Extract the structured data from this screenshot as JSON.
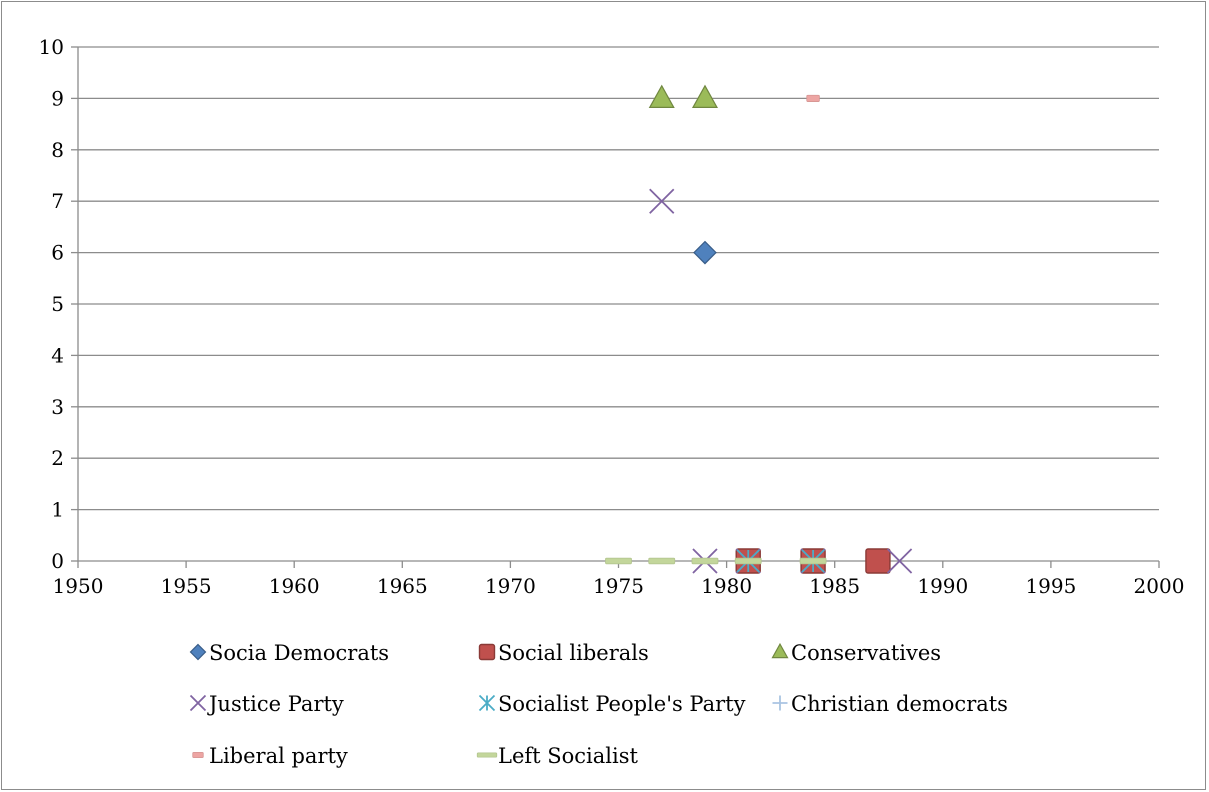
{
  "chart_data": {
    "type": "scatter",
    "title": "",
    "xlabel": "",
    "ylabel": "",
    "xlim": [
      1950,
      2000
    ],
    "ylim": [
      0,
      10
    ],
    "x_ticks": [
      "1950",
      "1955",
      "1960",
      "1965",
      "1970",
      "1975",
      "1980",
      "1985",
      "1990",
      "1995",
      "2000"
    ],
    "y_ticks": [
      "0",
      "1",
      "2",
      "3",
      "4",
      "5",
      "6",
      "7",
      "8",
      "9",
      "10"
    ],
    "grid": "horizontal",
    "legend_position": "bottom",
    "series": [
      {
        "name": "Socia Democrats",
        "marker": "diamond",
        "color": "#4f81bd",
        "points": [
          {
            "x": 1979,
            "y": 6
          }
        ]
      },
      {
        "name": "Social liberals",
        "marker": "square",
        "color": "#c0504d",
        "points": [
          {
            "x": 1981,
            "y": 0
          },
          {
            "x": 1984,
            "y": 0
          },
          {
            "x": 1987,
            "y": 0
          }
        ]
      },
      {
        "name": "Conservatives",
        "marker": "triangle",
        "color": "#9bbb59",
        "points": [
          {
            "x": 1977,
            "y": 9
          },
          {
            "x": 1979,
            "y": 9
          }
        ]
      },
      {
        "name": "Justice Party",
        "marker": "x",
        "color": "#8064a2",
        "points": [
          {
            "x": 1977,
            "y": 7
          },
          {
            "x": 1979,
            "y": 0
          },
          {
            "x": 1981,
            "y": 0
          },
          {
            "x": 1984,
            "y": 0
          },
          {
            "x": 1988,
            "y": 0
          }
        ]
      },
      {
        "name": "Socialist People's Party",
        "marker": "star",
        "color": "#4bacc6",
        "points": [
          {
            "x": 1981,
            "y": 0
          },
          {
            "x": 1984,
            "y": 0
          }
        ]
      },
      {
        "name": "Christian democrats",
        "marker": "plus",
        "color": "#a9c4e2",
        "points": []
      },
      {
        "name": "Liberal party",
        "marker": "dash",
        "color": "#eda5a3",
        "points": [
          {
            "x": 1984,
            "y": 9
          }
        ]
      },
      {
        "name": "Left Socialist",
        "marker": "bar",
        "color": "#c3d69b",
        "points": [
          {
            "x": 1975,
            "y": 0
          },
          {
            "x": 1977,
            "y": 0
          },
          {
            "x": 1979,
            "y": 0
          },
          {
            "x": 1981,
            "y": 0
          },
          {
            "x": 1984,
            "y": 0
          }
        ]
      }
    ]
  }
}
